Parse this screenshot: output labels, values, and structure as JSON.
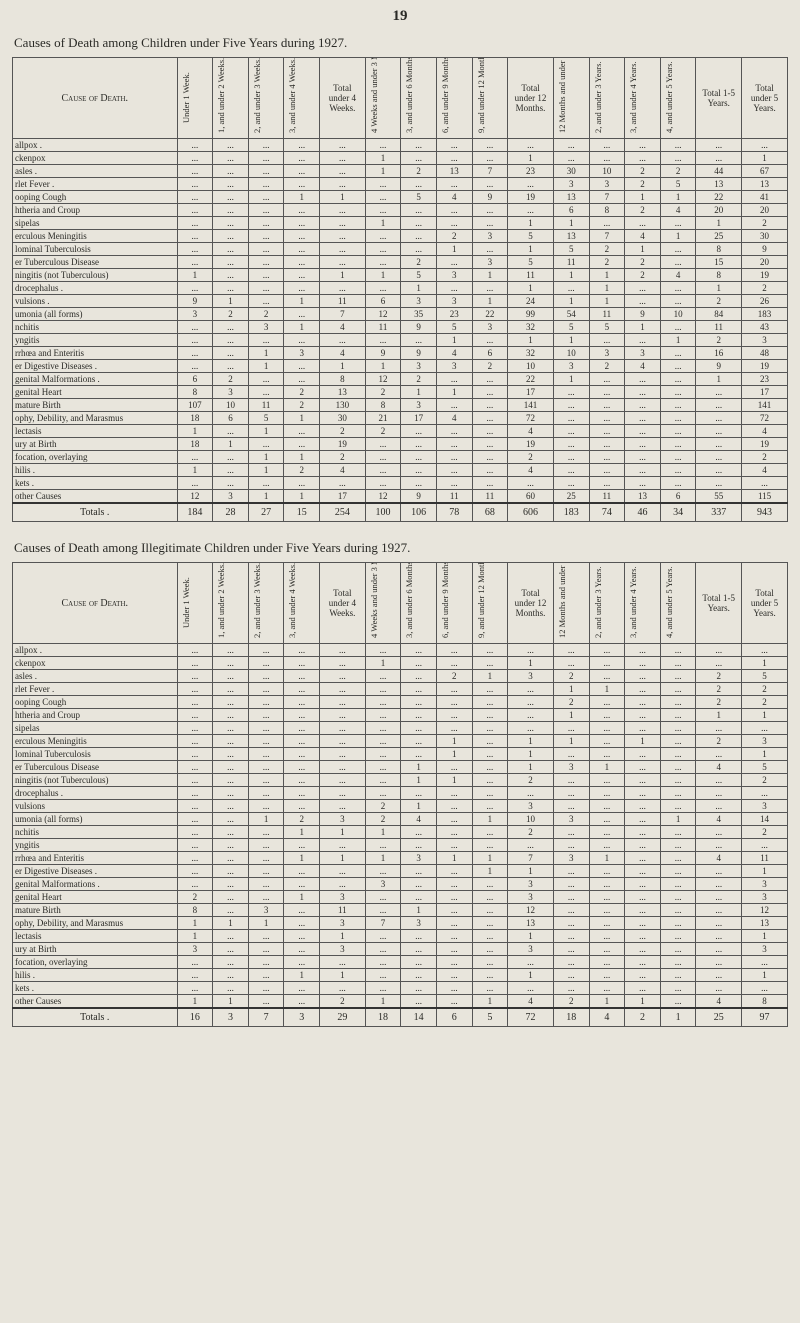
{
  "page_number": "19",
  "table1_title": "Causes of Death among Children under Five Years during 1927.",
  "table2_title": "Causes of Death among Illegitimate Children under Five Years during 1927.",
  "headers": {
    "cause": "Cause of Death.",
    "h1": "Under 1 Week.",
    "h2": "1, and under 2 Weeks.",
    "h3": "2, and under 3 Weeks.",
    "h4": "3, and under 4 Weeks.",
    "h_tot4w": "Total under 4 Weeks.",
    "h5": "4 Weeks and under 3 Months.",
    "h6": "3, and under 6 Months.",
    "h7": "6, and under 9 Months.",
    "h8": "9, and under 12 Months.",
    "h_tot12m": "Total under 12 Months.",
    "h9": "12 Months and under 2 Years.",
    "h10": "2, and under 3 Years.",
    "h11": "3, and under 4 Years.",
    "h12": "4, and under 5 Years.",
    "h_tot15": "Total 1-5 Years.",
    "h_tot5": "Total under 5 Years."
  },
  "table1_rows": [
    {
      "cause": "allpox .",
      "c": [
        "...",
        "...",
        "...",
        "...",
        "...",
        "...",
        "...",
        "...",
        "...",
        "...",
        "...",
        "...",
        "...",
        "...",
        "...",
        "..."
      ]
    },
    {
      "cause": "ckenpox",
      "c": [
        "...",
        "...",
        "...",
        "...",
        "...",
        "1",
        "...",
        "...",
        "...",
        "1",
        "...",
        "...",
        "...",
        "...",
        "...",
        "1"
      ]
    },
    {
      "cause": "asles .",
      "c": [
        "...",
        "...",
        "...",
        "...",
        "...",
        "1",
        "2",
        "13",
        "7",
        "23",
        "30",
        "10",
        "2",
        "2",
        "44",
        "67"
      ]
    },
    {
      "cause": "rlet Fever .",
      "c": [
        "...",
        "...",
        "...",
        "...",
        "...",
        "...",
        "...",
        "...",
        "...",
        "...",
        "3",
        "3",
        "2",
        "5",
        "13",
        "13"
      ]
    },
    {
      "cause": "ooping Cough",
      "c": [
        "...",
        "...",
        "...",
        "1",
        "1",
        "...",
        "5",
        "4",
        "9",
        "19",
        "13",
        "7",
        "1",
        "1",
        "22",
        "41"
      ]
    },
    {
      "cause": "htheria and Croup",
      "c": [
        "...",
        "...",
        "...",
        "...",
        "...",
        "...",
        "...",
        "...",
        "...",
        "...",
        "6",
        "8",
        "2",
        "4",
        "20",
        "20"
      ]
    },
    {
      "cause": "sipelas",
      "c": [
        "...",
        "...",
        "...",
        "...",
        "...",
        "1",
        "...",
        "...",
        "...",
        "1",
        "1",
        "...",
        "...",
        "...",
        "1",
        "2"
      ]
    },
    {
      "cause": "erculous Meningitis",
      "c": [
        "...",
        "...",
        "...",
        "...",
        "...",
        "...",
        "...",
        "2",
        "3",
        "5",
        "13",
        "7",
        "4",
        "1",
        "25",
        "30"
      ]
    },
    {
      "cause": "lominal Tuberculosis",
      "c": [
        "...",
        "...",
        "...",
        "...",
        "...",
        "...",
        "...",
        "1",
        "...",
        "1",
        "5",
        "2",
        "1",
        "...",
        "8",
        "9"
      ]
    },
    {
      "cause": "er Tuberculous Disease",
      "c": [
        "...",
        "...",
        "...",
        "...",
        "...",
        "...",
        "2",
        "...",
        "3",
        "5",
        "11",
        "2",
        "2",
        "...",
        "15",
        "20"
      ]
    },
    {
      "cause": "ningitis (not Tuberculous)",
      "c": [
        "1",
        "...",
        "...",
        "...",
        "1",
        "1",
        "5",
        "3",
        "1",
        "11",
        "1",
        "1",
        "2",
        "4",
        "8",
        "19"
      ]
    },
    {
      "cause": "drocephalus .",
      "c": [
        "...",
        "...",
        "...",
        "...",
        "...",
        "...",
        "1",
        "...",
        "...",
        "1",
        "...",
        "1",
        "...",
        "...",
        "1",
        "2"
      ]
    },
    {
      "cause": "vulsions .",
      "c": [
        "9",
        "1",
        "...",
        "1",
        "11",
        "6",
        "3",
        "3",
        "1",
        "24",
        "1",
        "1",
        "...",
        "...",
        "2",
        "26"
      ]
    },
    {
      "cause": "umonia (all forms)",
      "c": [
        "3",
        "2",
        "2",
        "...",
        "7",
        "12",
        "35",
        "23",
        "22",
        "99",
        "54",
        "11",
        "9",
        "10",
        "84",
        "183"
      ]
    },
    {
      "cause": "nchitis",
      "c": [
        "...",
        "...",
        "3",
        "1",
        "4",
        "11",
        "9",
        "5",
        "3",
        "32",
        "5",
        "5",
        "1",
        "...",
        "11",
        "43"
      ]
    },
    {
      "cause": "yngitis",
      "c": [
        "...",
        "...",
        "...",
        "...",
        "...",
        "...",
        "...",
        "1",
        "...",
        "1",
        "1",
        "...",
        "...",
        "1",
        "2",
        "3"
      ]
    },
    {
      "cause": "rrhœa and Enteritis",
      "c": [
        "...",
        "...",
        "1",
        "3",
        "4",
        "9",
        "9",
        "4",
        "6",
        "32",
        "10",
        "3",
        "3",
        "...",
        "16",
        "48"
      ]
    },
    {
      "cause": "er Digestive Diseases .",
      "c": [
        "...",
        "...",
        "1",
        "...",
        "1",
        "1",
        "3",
        "3",
        "2",
        "10",
        "3",
        "2",
        "4",
        "...",
        "9",
        "19"
      ]
    },
    {
      "cause": "genital Malformations .",
      "c": [
        "6",
        "2",
        "...",
        "...",
        "8",
        "12",
        "2",
        "...",
        "...",
        "22",
        "1",
        "...",
        "...",
        "...",
        "1",
        "23"
      ]
    },
    {
      "cause": "genital Heart",
      "c": [
        "8",
        "3",
        "...",
        "2",
        "13",
        "2",
        "1",
        "1",
        "...",
        "17",
        "...",
        "...",
        "...",
        "...",
        "...",
        "17"
      ]
    },
    {
      "cause": "mature Birth",
      "c": [
        "107",
        "10",
        "11",
        "2",
        "130",
        "8",
        "3",
        "...",
        "...",
        "141",
        "...",
        "...",
        "...",
        "...",
        "...",
        "141"
      ]
    },
    {
      "cause": "ophy, Debility, and Marasmus",
      "c": [
        "18",
        "6",
        "5",
        "1",
        "30",
        "21",
        "17",
        "4",
        "...",
        "72",
        "...",
        "...",
        "...",
        "...",
        "...",
        "72"
      ]
    },
    {
      "cause": "lectasis",
      "c": [
        "1",
        "...",
        "1",
        "...",
        "2",
        "2",
        "...",
        "...",
        "...",
        "4",
        "...",
        "...",
        "...",
        "...",
        "...",
        "4"
      ]
    },
    {
      "cause": "ury at Birth",
      "c": [
        "18",
        "1",
        "...",
        "...",
        "19",
        "...",
        "...",
        "...",
        "...",
        "19",
        "...",
        "...",
        "...",
        "...",
        "...",
        "19"
      ]
    },
    {
      "cause": "focation, overlaying",
      "c": [
        "...",
        "...",
        "1",
        "1",
        "2",
        "...",
        "...",
        "...",
        "...",
        "2",
        "...",
        "...",
        "...",
        "...",
        "...",
        "2"
      ]
    },
    {
      "cause": "hilis .",
      "c": [
        "1",
        "...",
        "1",
        "2",
        "4",
        "...",
        "...",
        "...",
        "...",
        "4",
        "...",
        "...",
        "...",
        "...",
        "...",
        "4"
      ]
    },
    {
      "cause": "kets .",
      "c": [
        "...",
        "...",
        "...",
        "...",
        "...",
        "...",
        "...",
        "...",
        "...",
        "...",
        "...",
        "...",
        "...",
        "...",
        "...",
        "..."
      ]
    },
    {
      "cause": "other Causes",
      "c": [
        "12",
        "3",
        "1",
        "1",
        "17",
        "12",
        "9",
        "11",
        "11",
        "60",
        "25",
        "11",
        "13",
        "6",
        "55",
        "115"
      ]
    }
  ],
  "table1_totals": {
    "label": "Totals .",
    "c": [
      "184",
      "28",
      "27",
      "15",
      "254",
      "100",
      "106",
      "78",
      "68",
      "606",
      "183",
      "74",
      "46",
      "34",
      "337",
      "943"
    ]
  },
  "table2_rows": [
    {
      "cause": "allpox .",
      "c": [
        "...",
        "...",
        "...",
        "...",
        "...",
        "...",
        "...",
        "...",
        "...",
        "...",
        "...",
        "...",
        "...",
        "...",
        "...",
        "..."
      ]
    },
    {
      "cause": "ckenpox",
      "c": [
        "...",
        "...",
        "...",
        "...",
        "...",
        "1",
        "...",
        "...",
        "...",
        "1",
        "...",
        "...",
        "...",
        "...",
        "...",
        "1"
      ]
    },
    {
      "cause": "asles .",
      "c": [
        "...",
        "...",
        "...",
        "...",
        "...",
        "...",
        "...",
        "2",
        "1",
        "3",
        "2",
        "...",
        "...",
        "...",
        "2",
        "5"
      ]
    },
    {
      "cause": "rlet Fever .",
      "c": [
        "...",
        "...",
        "...",
        "...",
        "...",
        "...",
        "...",
        "...",
        "...",
        "...",
        "1",
        "1",
        "...",
        "...",
        "2",
        "2"
      ]
    },
    {
      "cause": "ooping Cough",
      "c": [
        "...",
        "...",
        "...",
        "...",
        "...",
        "...",
        "...",
        "...",
        "...",
        "...",
        "2",
        "...",
        "...",
        "...",
        "2",
        "2"
      ]
    },
    {
      "cause": "htheria and Croup",
      "c": [
        "...",
        "...",
        "...",
        "...",
        "...",
        "...",
        "...",
        "...",
        "...",
        "...",
        "1",
        "...",
        "...",
        "...",
        "1",
        "1"
      ]
    },
    {
      "cause": "sipelas",
      "c": [
        "...",
        "...",
        "...",
        "...",
        "...",
        "...",
        "...",
        "...",
        "...",
        "...",
        "...",
        "...",
        "...",
        "...",
        "...",
        "..."
      ]
    },
    {
      "cause": "erculous Meningitis",
      "c": [
        "...",
        "...",
        "...",
        "...",
        "...",
        "...",
        "...",
        "1",
        "...",
        "1",
        "1",
        "...",
        "1",
        "...",
        "2",
        "3"
      ]
    },
    {
      "cause": "lominal Tuberculosis",
      "c": [
        "...",
        "...",
        "...",
        "...",
        "...",
        "...",
        "...",
        "1",
        "...",
        "1",
        "...",
        "...",
        "...",
        "...",
        "...",
        "1"
      ]
    },
    {
      "cause": "er Tuberculous Disease",
      "c": [
        "...",
        "...",
        "...",
        "...",
        "...",
        "...",
        "1",
        "...",
        "...",
        "1",
        "3",
        "1",
        "...",
        "...",
        "4",
        "5"
      ]
    },
    {
      "cause": "ningitis (not Tuberculous)",
      "c": [
        "...",
        "...",
        "...",
        "...",
        "...",
        "...",
        "1",
        "1",
        "...",
        "2",
        "...",
        "...",
        "...",
        "...",
        "...",
        "2"
      ]
    },
    {
      "cause": "drocephalus .",
      "c": [
        "...",
        "...",
        "...",
        "...",
        "...",
        "...",
        "...",
        "...",
        "...",
        "...",
        "...",
        "...",
        "...",
        "...",
        "...",
        "..."
      ]
    },
    {
      "cause": "vulsions",
      "c": [
        "...",
        "...",
        "...",
        "...",
        "...",
        "2",
        "1",
        "...",
        "...",
        "3",
        "...",
        "...",
        "...",
        "...",
        "...",
        "3"
      ]
    },
    {
      "cause": "umonia (all forms)",
      "c": [
        "...",
        "...",
        "1",
        "2",
        "3",
        "2",
        "4",
        "...",
        "1",
        "10",
        "3",
        "...",
        "...",
        "1",
        "4",
        "14"
      ]
    },
    {
      "cause": "nchitis",
      "c": [
        "...",
        "...",
        "...",
        "1",
        "1",
        "1",
        "...",
        "...",
        "...",
        "2",
        "...",
        "...",
        "...",
        "...",
        "...",
        "2"
      ]
    },
    {
      "cause": "yngitis",
      "c": [
        "...",
        "...",
        "...",
        "...",
        "...",
        "...",
        "...",
        "...",
        "...",
        "...",
        "...",
        "...",
        "...",
        "...",
        "...",
        "..."
      ]
    },
    {
      "cause": "rrhœa and Enteritis",
      "c": [
        "...",
        "...",
        "...",
        "1",
        "1",
        "1",
        "3",
        "1",
        "1",
        "7",
        "3",
        "1",
        "...",
        "...",
        "4",
        "11"
      ]
    },
    {
      "cause": "er Digestive Diseases .",
      "c": [
        "...",
        "...",
        "...",
        "...",
        "...",
        "...",
        "...",
        "...",
        "1",
        "1",
        "...",
        "...",
        "...",
        "...",
        "...",
        "1"
      ]
    },
    {
      "cause": "genital Malformations .",
      "c": [
        "...",
        "...",
        "...",
        "...",
        "...",
        "3",
        "...",
        "...",
        "...",
        "3",
        "...",
        "...",
        "...",
        "...",
        "...",
        "3"
      ]
    },
    {
      "cause": "genital Heart",
      "c": [
        "2",
        "...",
        "...",
        "1",
        "3",
        "...",
        "...",
        "...",
        "...",
        "3",
        "...",
        "...",
        "...",
        "...",
        "...",
        "3"
      ]
    },
    {
      "cause": "mature Birth",
      "c": [
        "8",
        "...",
        "3",
        "...",
        "11",
        "...",
        "1",
        "...",
        "...",
        "12",
        "...",
        "...",
        "...",
        "...",
        "...",
        "12"
      ]
    },
    {
      "cause": "ophy, Debility, and Marasmus",
      "c": [
        "1",
        "1",
        "1",
        "...",
        "3",
        "7",
        "3",
        "...",
        "...",
        "13",
        "...",
        "...",
        "...",
        "...",
        "...",
        "13"
      ]
    },
    {
      "cause": "lectasis",
      "c": [
        "1",
        "...",
        "...",
        "...",
        "1",
        "...",
        "...",
        "...",
        "...",
        "1",
        "...",
        "...",
        "...",
        "...",
        "...",
        "1"
      ]
    },
    {
      "cause": "ury at Birth",
      "c": [
        "3",
        "...",
        "...",
        "...",
        "3",
        "...",
        "...",
        "...",
        "...",
        "3",
        "...",
        "...",
        "...",
        "...",
        "...",
        "3"
      ]
    },
    {
      "cause": "focation, overlaying",
      "c": [
        "...",
        "...",
        "...",
        "...",
        "...",
        "...",
        "...",
        "...",
        "...",
        "...",
        "...",
        "...",
        "...",
        "...",
        "...",
        "..."
      ]
    },
    {
      "cause": "hilis .",
      "c": [
        "...",
        "...",
        "...",
        "1",
        "1",
        "...",
        "...",
        "...",
        "...",
        "1",
        "...",
        "...",
        "...",
        "...",
        "...",
        "1"
      ]
    },
    {
      "cause": "kets .",
      "c": [
        "...",
        "...",
        "...",
        "...",
        "...",
        "...",
        "...",
        "...",
        "...",
        "...",
        "...",
        "...",
        "...",
        "...",
        "...",
        "..."
      ]
    },
    {
      "cause": "other Causes",
      "c": [
        "1",
        "1",
        "...",
        "...",
        "2",
        "1",
        "...",
        "...",
        "1",
        "4",
        "2",
        "1",
        "1",
        "...",
        "4",
        "8"
      ]
    }
  ],
  "table2_totals": {
    "label": "Totals .",
    "c": [
      "16",
      "3",
      "7",
      "3",
      "29",
      "18",
      "14",
      "6",
      "5",
      "72",
      "18",
      "4",
      "2",
      "1",
      "25",
      "97"
    ]
  },
  "table2_header_tot5": "Total under 5 Years."
}
